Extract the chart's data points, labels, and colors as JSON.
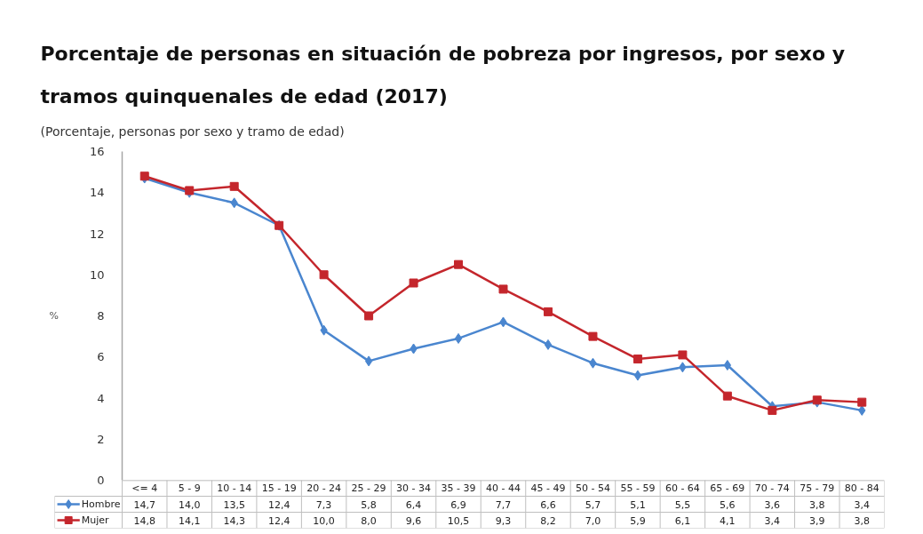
{
  "chart_data": {
    "type": "line",
    "title": "Porcentaje de personas en situación de pobreza por ingresos, por sexo y tramos quinquenales de edad (2017)",
    "subtitle": "(Porcentaje, personas por sexo y tramo de edad)",
    "ylabel": "%",
    "categories": [
      "<= 4",
      "5 - 9",
      "10 - 14",
      "15 - 19",
      "20 - 24",
      "25 - 29",
      "30 - 34",
      "35 - 39",
      "40 - 44",
      "45 - 49",
      "50 - 54",
      "55 - 59",
      "60 - 64",
      "65 - 69",
      "70 - 74",
      "75 - 79",
      "80 - 84"
    ],
    "ylim": [
      0,
      16
    ],
    "yticks": [
      0,
      2,
      4,
      6,
      8,
      10,
      12,
      14,
      16
    ],
    "grid": false,
    "legend": "bottom left",
    "series": [
      {
        "name": "Hombre",
        "color": "#4a86cf",
        "marker": "diamond",
        "values": [
          14.7,
          14.0,
          13.5,
          12.4,
          7.3,
          5.8,
          6.4,
          6.9,
          7.7,
          6.6,
          5.7,
          5.1,
          5.5,
          5.6,
          3.6,
          3.8,
          3.4
        ],
        "value_labels": [
          "14,7",
          "14,0",
          "13,5",
          "12,4",
          "7,3",
          "5,8",
          "6,4",
          "6,9",
          "7,7",
          "6,6",
          "5,7",
          "5,1",
          "5,5",
          "5,6",
          "3,6",
          "3,8",
          "3,4"
        ]
      },
      {
        "name": "Mujer",
        "color": "#c4262c",
        "marker": "square",
        "values": [
          14.8,
          14.1,
          14.3,
          12.4,
          10.0,
          8.0,
          9.6,
          10.5,
          9.3,
          8.2,
          7.0,
          5.9,
          6.1,
          4.1,
          3.4,
          3.9,
          3.8
        ],
        "value_labels": [
          "14,8",
          "14,1",
          "14,3",
          "12,4",
          "10,0",
          "8,0",
          "9,6",
          "10,5",
          "9,3",
          "8,2",
          "7,0",
          "5,9",
          "6,1",
          "4,1",
          "3,4",
          "3,9",
          "3,8"
        ]
      }
    ]
  }
}
